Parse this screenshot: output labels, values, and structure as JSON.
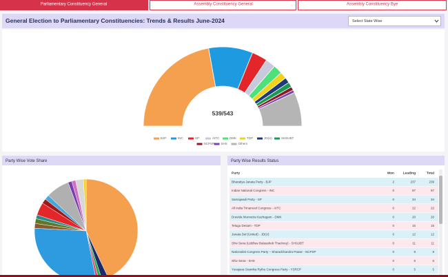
{
  "tabs": [
    "Parliamentary Constituency General",
    "Assembly Constituency General",
    "Assembly Constituency Bye"
  ],
  "header": {
    "title": "General Election to Parliamentary Constituencies: Trends & Results June-2024",
    "dropdown": "Select State Wise"
  },
  "chart_data": [
    {
      "type": "half-donut",
      "center_label": "539/543",
      "categories": [
        "BJP",
        "INC",
        "SP",
        "AITC",
        "DMK",
        "TDP",
        "JD(U)",
        "SHSUBT",
        "NCPSP",
        "SHS",
        "Others"
      ],
      "values": [
        239,
        97,
        34,
        22,
        20,
        15,
        12,
        11,
        8,
        6,
        75
      ],
      "colors": [
        "#f5a04f",
        "#1e9be0",
        "#e3262a",
        "#c9c9dc",
        "#4ee07a",
        "#f2d21b",
        "#1f3a7a",
        "#1a9a50",
        "#8a1a2a",
        "#7c3fb0",
        "#b5b5b5"
      ]
    },
    {
      "type": "pie",
      "title": "Party Wise Vote Share",
      "values": [
        43,
        2,
        1,
        0.8,
        29,
        1.5,
        1.5,
        1.2,
        4,
        1.5,
        1.5,
        7.3,
        1.2,
        1.2,
        2.5,
        0.8
      ],
      "colors": [
        "#f5a04f",
        "#1c2a6b",
        "#2ea84f",
        "#e0407a",
        "#2e9be0",
        "#8a5a2a",
        "#5a7a2a",
        "#2a8a8a",
        "#e3262a",
        "#a01818",
        "#4aa8d8",
        "#b0b0b0",
        "#7c3fb0",
        "#d070c0",
        "#d8d8d8",
        "#f5d020"
      ]
    }
  ],
  "table": {
    "title": "Party Wise Results Status",
    "columns": [
      "Party",
      "Won",
      "Leading",
      "Total"
    ],
    "rows": [
      [
        "Bharatiya Janata Party - BJP",
        2,
        237,
        239
      ],
      [
        "Indian National Congress - INC",
        0,
        97,
        97
      ],
      [
        "Samajwadi Party - SP",
        0,
        34,
        34
      ],
      [
        "All India Trinamool Congress - AITC",
        0,
        22,
        22
      ],
      [
        "Dravida Munnetra Kazhagam - DMK",
        0,
        20,
        20
      ],
      [
        "Telugu Desam - TDP",
        0,
        15,
        15
      ],
      [
        "Janata Dal (United) - JD(U)",
        0,
        12,
        12
      ],
      [
        "Shiv Sena (Uddhav Balasaheb Thackrey) - SHSUBT",
        0,
        11,
        11
      ],
      [
        "Nationalist Congress Party – Sharadchandra Pawar - NCPSP",
        0,
        8,
        8
      ],
      [
        "Shiv Sena - SHS",
        0,
        6,
        6
      ],
      [
        "Yuvajana Sramika Rythu Congress Party - YSRCP",
        0,
        5,
        5
      ]
    ]
  }
}
